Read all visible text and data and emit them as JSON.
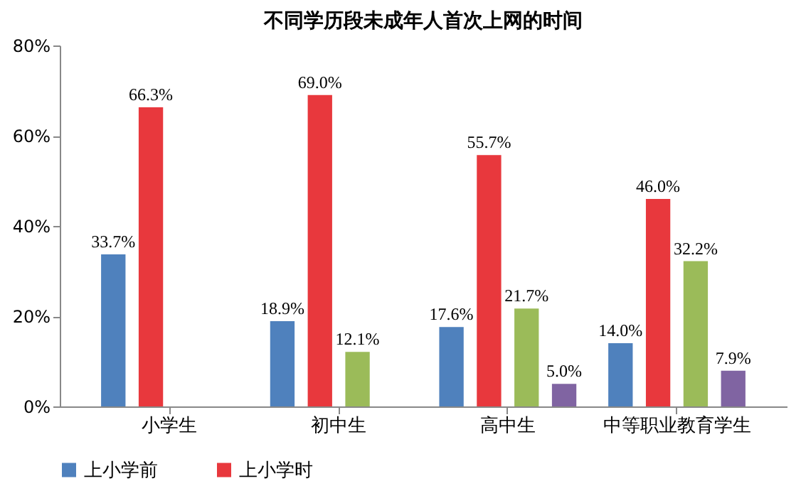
{
  "chart_data": {
    "type": "bar",
    "title": "不同学历段未成年人首次上网的时间",
    "categories": [
      "小学生",
      "初中生",
      "高中生",
      "中等职业教育学生"
    ],
    "series": [
      {
        "name": "上小学前",
        "color": "#4f81bd",
        "values": [
          33.7,
          18.9,
          17.6,
          14.0
        ],
        "value_labels": [
          "33.7%",
          "18.9%",
          "17.6%",
          "14.0%"
        ]
      },
      {
        "name": "上小学时",
        "color": "#e8383d",
        "values": [
          66.3,
          69.0,
          55.7,
          46.0
        ],
        "value_labels": [
          "66.3%",
          "69.0%",
          "55.7%",
          "46.0%"
        ]
      },
      {
        "color": "#9bbb59",
        "values": [
          null,
          12.1,
          21.7,
          32.2
        ],
        "value_labels": [
          null,
          "12.1%",
          "21.7%",
          "32.2%"
        ]
      },
      {
        "color": "#8064a2",
        "values": [
          null,
          null,
          5.0,
          7.9
        ],
        "value_labels": [
          null,
          null,
          "5.0%",
          "7.9%"
        ]
      }
    ],
    "ylim": [
      0,
      80
    ],
    "yticks": [
      {
        "value": 0,
        "label": "0%"
      },
      {
        "value": 20,
        "label": "20%"
      },
      {
        "value": 40,
        "label": "40%"
      },
      {
        "value": 60,
        "label": "60%"
      },
      {
        "value": 80,
        "label": "80%"
      }
    ],
    "grid": false,
    "legend": "bottom"
  }
}
